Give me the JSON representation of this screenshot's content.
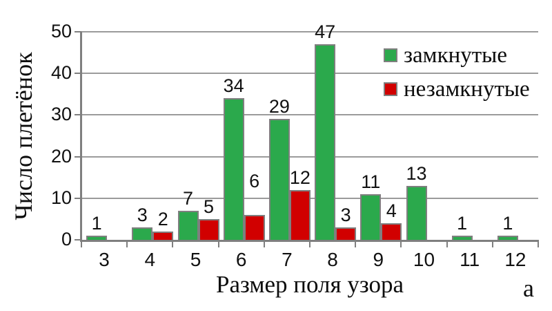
{
  "figure": {
    "corner_label": "а",
    "background": "#ffffff"
  },
  "chart_data": {
    "type": "bar",
    "title": "",
    "xlabel": "Размер поля узора",
    "ylabel": "Число плетёнок",
    "categories": [
      "3",
      "4",
      "5",
      "6",
      "7",
      "8",
      "9",
      "10",
      "11",
      "12"
    ],
    "series": [
      {
        "name": "замкнутые",
        "color": "#2BA94C",
        "values": [
          1,
          3,
          7,
          34,
          29,
          47,
          11,
          13,
          1,
          1
        ]
      },
      {
        "name": "незамкнутые",
        "color": "#D10000",
        "values": [
          null,
          2,
          5,
          6,
          12,
          3,
          4,
          null,
          null,
          null
        ]
      }
    ],
    "value_labels_shown": true,
    "red_label_extra_raise": [
      0,
      0,
      0,
      31,
      0,
      0,
      0,
      0,
      0,
      0
    ],
    "ylim": [
      0,
      50
    ],
    "yticks": [
      0,
      10,
      20,
      30,
      40,
      50
    ],
    "grid": "horizontal",
    "legend_position": "inside-top-right",
    "bar_border_color": "#7F7F7F",
    "axis_color": "#7F7F7F",
    "gridline_color": "#9B9B9B",
    "text_color": "#111111"
  }
}
